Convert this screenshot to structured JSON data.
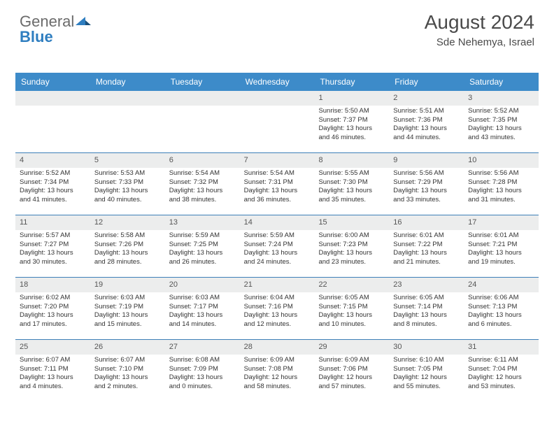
{
  "brand": {
    "part1": "General",
    "part2": "Blue",
    "part2_color": "#2f7ec0",
    "mark_color": "#2f7ec0"
  },
  "title": "August 2024",
  "location": "Sde Nehemya, Israel",
  "header_bg": "#3d8bc9",
  "daynum_bg": "#eceded",
  "rule_color": "#3d7fb8",
  "day_headers": [
    "Sunday",
    "Monday",
    "Tuesday",
    "Wednesday",
    "Thursday",
    "Friday",
    "Saturday"
  ],
  "weeks": [
    [
      null,
      null,
      null,
      null,
      {
        "n": "1",
        "sr": "5:50 AM",
        "ss": "7:37 PM",
        "dl": "13 hours and 46 minutes."
      },
      {
        "n": "2",
        "sr": "5:51 AM",
        "ss": "7:36 PM",
        "dl": "13 hours and 44 minutes."
      },
      {
        "n": "3",
        "sr": "5:52 AM",
        "ss": "7:35 PM",
        "dl": "13 hours and 43 minutes."
      }
    ],
    [
      {
        "n": "4",
        "sr": "5:52 AM",
        "ss": "7:34 PM",
        "dl": "13 hours and 41 minutes."
      },
      {
        "n": "5",
        "sr": "5:53 AM",
        "ss": "7:33 PM",
        "dl": "13 hours and 40 minutes."
      },
      {
        "n": "6",
        "sr": "5:54 AM",
        "ss": "7:32 PM",
        "dl": "13 hours and 38 minutes."
      },
      {
        "n": "7",
        "sr": "5:54 AM",
        "ss": "7:31 PM",
        "dl": "13 hours and 36 minutes."
      },
      {
        "n": "8",
        "sr": "5:55 AM",
        "ss": "7:30 PM",
        "dl": "13 hours and 35 minutes."
      },
      {
        "n": "9",
        "sr": "5:56 AM",
        "ss": "7:29 PM",
        "dl": "13 hours and 33 minutes."
      },
      {
        "n": "10",
        "sr": "5:56 AM",
        "ss": "7:28 PM",
        "dl": "13 hours and 31 minutes."
      }
    ],
    [
      {
        "n": "11",
        "sr": "5:57 AM",
        "ss": "7:27 PM",
        "dl": "13 hours and 30 minutes."
      },
      {
        "n": "12",
        "sr": "5:58 AM",
        "ss": "7:26 PM",
        "dl": "13 hours and 28 minutes."
      },
      {
        "n": "13",
        "sr": "5:59 AM",
        "ss": "7:25 PM",
        "dl": "13 hours and 26 minutes."
      },
      {
        "n": "14",
        "sr": "5:59 AM",
        "ss": "7:24 PM",
        "dl": "13 hours and 24 minutes."
      },
      {
        "n": "15",
        "sr": "6:00 AM",
        "ss": "7:23 PM",
        "dl": "13 hours and 23 minutes."
      },
      {
        "n": "16",
        "sr": "6:01 AM",
        "ss": "7:22 PM",
        "dl": "13 hours and 21 minutes."
      },
      {
        "n": "17",
        "sr": "6:01 AM",
        "ss": "7:21 PM",
        "dl": "13 hours and 19 minutes."
      }
    ],
    [
      {
        "n": "18",
        "sr": "6:02 AM",
        "ss": "7:20 PM",
        "dl": "13 hours and 17 minutes."
      },
      {
        "n": "19",
        "sr": "6:03 AM",
        "ss": "7:19 PM",
        "dl": "13 hours and 15 minutes."
      },
      {
        "n": "20",
        "sr": "6:03 AM",
        "ss": "7:17 PM",
        "dl": "13 hours and 14 minutes."
      },
      {
        "n": "21",
        "sr": "6:04 AM",
        "ss": "7:16 PM",
        "dl": "13 hours and 12 minutes."
      },
      {
        "n": "22",
        "sr": "6:05 AM",
        "ss": "7:15 PM",
        "dl": "13 hours and 10 minutes."
      },
      {
        "n": "23",
        "sr": "6:05 AM",
        "ss": "7:14 PM",
        "dl": "13 hours and 8 minutes."
      },
      {
        "n": "24",
        "sr": "6:06 AM",
        "ss": "7:13 PM",
        "dl": "13 hours and 6 minutes."
      }
    ],
    [
      {
        "n": "25",
        "sr": "6:07 AM",
        "ss": "7:11 PM",
        "dl": "13 hours and 4 minutes."
      },
      {
        "n": "26",
        "sr": "6:07 AM",
        "ss": "7:10 PM",
        "dl": "13 hours and 2 minutes."
      },
      {
        "n": "27",
        "sr": "6:08 AM",
        "ss": "7:09 PM",
        "dl": "13 hours and 0 minutes."
      },
      {
        "n": "28",
        "sr": "6:09 AM",
        "ss": "7:08 PM",
        "dl": "12 hours and 58 minutes."
      },
      {
        "n": "29",
        "sr": "6:09 AM",
        "ss": "7:06 PM",
        "dl": "12 hours and 57 minutes."
      },
      {
        "n": "30",
        "sr": "6:10 AM",
        "ss": "7:05 PM",
        "dl": "12 hours and 55 minutes."
      },
      {
        "n": "31",
        "sr": "6:11 AM",
        "ss": "7:04 PM",
        "dl": "12 hours and 53 minutes."
      }
    ]
  ],
  "labels": {
    "sunrise": "Sunrise:",
    "sunset": "Sunset:",
    "daylight": "Daylight:"
  }
}
